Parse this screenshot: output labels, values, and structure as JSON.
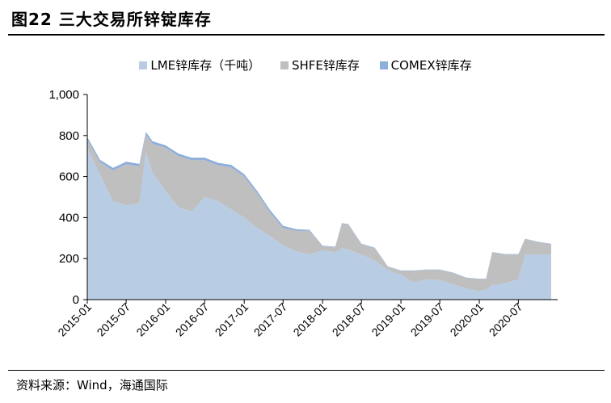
{
  "header": {
    "title": "图22 三大交易所锌锭库存"
  },
  "footer": {
    "source": "资料来源：Wind，海通国际"
  },
  "colors": {
    "lme": "#b8cce4",
    "shfe": "#bfbfbf",
    "comex": "#8eaedb"
  },
  "chart_data": {
    "type": "area",
    "stacked": true,
    "title": "",
    "xlabel": "",
    "ylabel": "",
    "ylim": [
      0,
      1000
    ],
    "yticks": [
      0,
      200,
      400,
      600,
      800,
      1000
    ],
    "ytick_labels": [
      "0",
      "200",
      "400",
      "600",
      "800",
      "1,000"
    ],
    "xticks": [
      "2015-01",
      "2015-07",
      "2016-01",
      "2016-07",
      "2017-01",
      "2017-07",
      "2018-01",
      "2018-07",
      "2019-01",
      "2019-07",
      "2020-01",
      "2020-07"
    ],
    "legend_position": "top-center",
    "grid": false,
    "x": [
      "2015-01",
      "2015-03",
      "2015-05",
      "2015-07",
      "2015-09",
      "2015-10",
      "2015-11",
      "2016-01",
      "2016-03",
      "2016-05",
      "2016-07",
      "2016-09",
      "2016-11",
      "2017-01",
      "2017-03",
      "2017-05",
      "2017-07",
      "2017-09",
      "2017-11",
      "2018-01",
      "2018-03",
      "2018-04",
      "2018-05",
      "2018-07",
      "2018-09",
      "2018-11",
      "2019-01",
      "2019-03",
      "2019-05",
      "2019-07",
      "2019-09",
      "2019-11",
      "2020-01",
      "2020-02",
      "2020-03",
      "2020-05",
      "2020-07",
      "2020-08",
      "2020-10",
      "2020-12"
    ],
    "series": [
      {
        "name": "LME锌库存（千吨）",
        "values": [
          740,
          610,
          480,
          460,
          470,
          720,
          620,
          530,
          450,
          430,
          500,
          480,
          440,
          400,
          350,
          310,
          265,
          235,
          220,
          240,
          230,
          250,
          245,
          220,
          190,
          145,
          120,
          85,
          100,
          95,
          75,
          55,
          40,
          50,
          70,
          80,
          100,
          220,
          220,
          220
        ]
      },
      {
        "name": "SHFE锌库存",
        "values": [
          40,
          60,
          150,
          200,
          180,
          85,
          140,
          210,
          250,
          250,
          180,
          175,
          205,
          200,
          170,
          115,
          85,
          100,
          115,
          20,
          25,
          120,
          120,
          50,
          60,
          15,
          20,
          55,
          45,
          50,
          55,
          50,
          60,
          50,
          160,
          140,
          120,
          75,
          60,
          50
        ]
      },
      {
        "name": "COMEX锌库存",
        "values": [
          12,
          12,
          12,
          12,
          12,
          12,
          12,
          12,
          12,
          12,
          12,
          12,
          12,
          12,
          12,
          12,
          10,
          8,
          5,
          3,
          3,
          3,
          3,
          3,
          3,
          2,
          2,
          2,
          2,
          2,
          2,
          2,
          2,
          2,
          2,
          2,
          2,
          2,
          2,
          2
        ]
      }
    ]
  }
}
